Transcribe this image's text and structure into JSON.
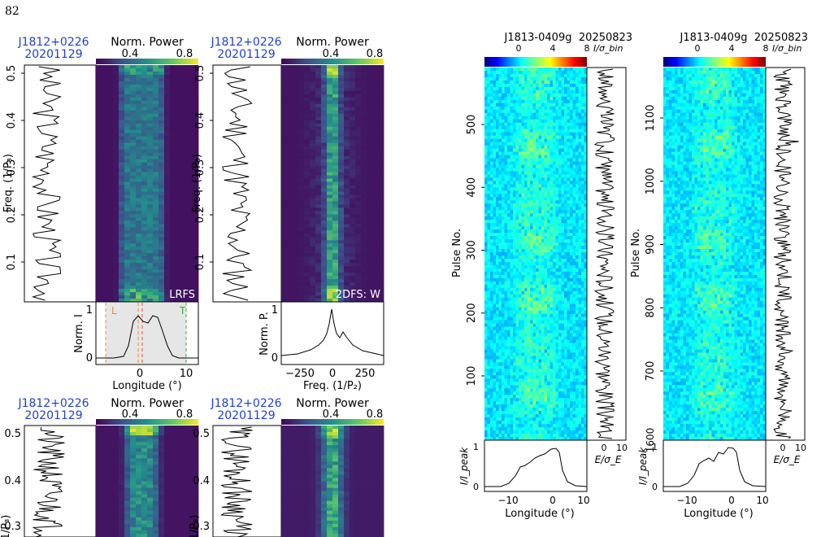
{
  "page_number": "82",
  "colors": {
    "source_label": "#1f3fd6",
    "leading_marker": "#f08a2a",
    "trailing_marker": "#3aa844",
    "mid_marker": "#e05050",
    "profile_fill": "#e6e6e6"
  },
  "left_figure": {
    "source": "J1812+0226",
    "date": "20201129",
    "colorbar_title": "Norm. Power",
    "colorbar_ticks": [
      "0.4",
      "0.8"
    ],
    "colormap": "viridis",
    "panels": [
      {
        "id": "lrfs",
        "side_ylabel": "Freq. (1/P₃)",
        "side_yticks": [
          "0.1",
          "0.2",
          "0.3",
          "0.4",
          "0.5"
        ],
        "corner_label": "LRFS",
        "bottom_ylabel": "Norm. I",
        "bottom_yticks": [
          "0",
          "1"
        ],
        "bottom_xlabel": "Longitude (°)",
        "bottom_xticks": [
          "0",
          "10"
        ],
        "markers": [
          "L",
          "T"
        ]
      },
      {
        "id": "2dfs-w",
        "side_ylabel": "Freq. (1/P₃)",
        "side_yticks": [
          "0.1",
          "0.2",
          "0.3",
          "0.4",
          "0.5"
        ],
        "corner_label": "2DFS: W",
        "bottom_ylabel": "Norm. P.",
        "bottom_yticks": [
          "0",
          "1"
        ],
        "bottom_xlabel": "Freq. (1/P₂)",
        "bottom_xticks": [
          "−250",
          "0",
          "250"
        ]
      }
    ],
    "lower_row": {
      "side_ylabel": "1/P₃)",
      "side_yticks": [
        "0.3",
        "0.4",
        "0.5"
      ]
    }
  },
  "right_figure": {
    "colorbar_ticks": [
      "0",
      "4",
      "8"
    ],
    "colorbar_unit": "I/σ_bin",
    "colormap": "jet",
    "panels": [
      {
        "id": "stack-1",
        "source": "J1813-0409g",
        "date": "20250823",
        "ylabel": "Pulse No.",
        "yticks": [
          "100",
          "200",
          "300",
          "400",
          "500"
        ],
        "energy_xlabel": "E/σ_E",
        "energy_xticks": [
          "0",
          "10"
        ],
        "profile_ylabel": "I/I_peak",
        "profile_yticks": [
          "0",
          "1"
        ],
        "profile_xlabel": "Longitude (°)",
        "profile_xticks": [
          "−10",
          "0",
          "10"
        ]
      },
      {
        "id": "stack-2",
        "source": "J1813-0409g",
        "date": "20250823",
        "ylabel": "Pulse No.",
        "yticks": [
          "700",
          "800",
          "900",
          "1000",
          "1100"
        ],
        "bottom_ytick": "1600",
        "energy_xlabel": "E/σ_E",
        "energy_xticks": [
          "0",
          "10"
        ],
        "profile_ylabel": "I/I_peak",
        "profile_yticks": [
          "0",
          "1"
        ],
        "profile_xlabel": "Longitude (°)",
        "profile_xticks": [
          "−10",
          "0",
          "10"
        ]
      }
    ]
  }
}
